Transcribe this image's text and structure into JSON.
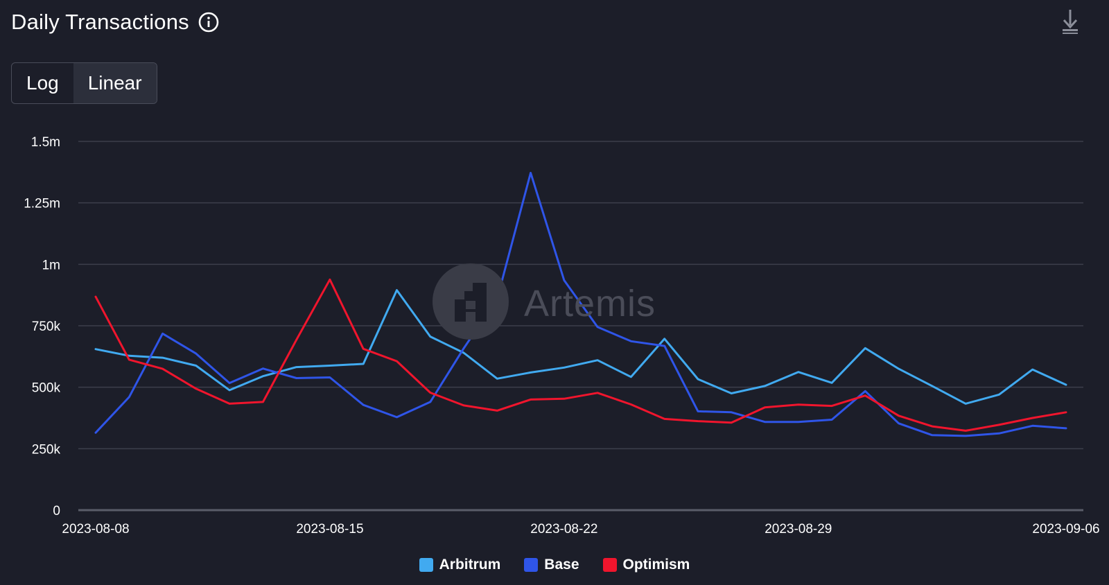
{
  "header": {
    "title": "Daily Transactions",
    "info_icon": "info-circle-icon",
    "download_icon": "download-icon"
  },
  "scale_toggle": {
    "options": [
      "Log",
      "Linear"
    ],
    "selected": "Linear"
  },
  "watermark": {
    "logo_icon": "artemis-logo-icon",
    "text": "Artemis"
  },
  "colors": {
    "background": "#1c1e29",
    "grid": "#3c3f4b",
    "Arbitrum": "#41aaf0",
    "Base": "#2f55e8",
    "Optimism": "#f0152d"
  },
  "chart_data": {
    "type": "line",
    "title": "Daily Transactions",
    "xlabel": "",
    "ylabel": "",
    "ylim": [
      0,
      1500000
    ],
    "y_ticks": [
      0,
      250000,
      500000,
      750000,
      1000000,
      1250000,
      1500000
    ],
    "y_tick_labels": [
      "0",
      "250k",
      "500k",
      "750k",
      "1m",
      "1.25m",
      "1.5m"
    ],
    "x_tick_labels": [
      "2023-08-08",
      "2023-08-15",
      "2023-08-22",
      "2023-08-29",
      "2023-09-06"
    ],
    "x_tick_index": [
      0,
      7,
      14,
      21,
      29
    ],
    "grid": true,
    "legend_position": "bottom-center",
    "x": [
      "2023-08-08",
      "2023-08-09",
      "2023-08-10",
      "2023-08-11",
      "2023-08-12",
      "2023-08-13",
      "2023-08-14",
      "2023-08-15",
      "2023-08-16",
      "2023-08-17",
      "2023-08-18",
      "2023-08-19",
      "2023-08-20",
      "2023-08-21",
      "2023-08-22",
      "2023-08-23",
      "2023-08-24",
      "2023-08-25",
      "2023-08-26",
      "2023-08-27",
      "2023-08-28",
      "2023-08-29",
      "2023-08-30",
      "2023-08-31",
      "2023-09-01",
      "2023-09-02",
      "2023-09-03",
      "2023-09-04",
      "2023-09-05",
      "2023-09-06"
    ],
    "series": [
      {
        "name": "Arbitrum",
        "values": [
          655000,
          628000,
          620000,
          588000,
          488000,
          545000,
          582000,
          588000,
          595000,
          895000,
          706000,
          640000,
          535000,
          560000,
          580000,
          610000,
          542000,
          697000,
          533000,
          475000,
          505000,
          562000,
          518000,
          659000,
          575000,
          505000,
          433000,
          470000,
          572000,
          510000
        ]
      },
      {
        "name": "Base",
        "values": [
          315000,
          460000,
          718000,
          637000,
          517000,
          576000,
          537000,
          540000,
          428000,
          378000,
          440000,
          658000,
          860000,
          1372000,
          935000,
          745000,
          687000,
          668000,
          402000,
          398000,
          359000,
          359000,
          368000,
          484000,
          353000,
          305000,
          302000,
          312000,
          343000,
          333000
        ]
      },
      {
        "name": "Optimism",
        "values": [
          868000,
          612000,
          575000,
          494000,
          433000,
          440000,
          693000,
          938000,
          656000,
          606000,
          478000,
          426000,
          405000,
          450000,
          453000,
          477000,
          430000,
          371000,
          362000,
          356000,
          418000,
          429000,
          424000,
          466000,
          384000,
          341000,
          323000,
          347000,
          375000,
          398000
        ]
      }
    ]
  }
}
